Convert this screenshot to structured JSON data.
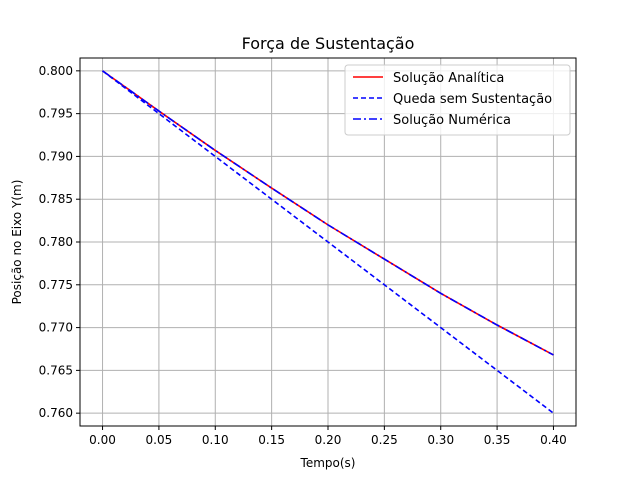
{
  "chart_data": {
    "type": "line",
    "title": "Força de Sustentação",
    "xlabel": "Tempo(s)",
    "ylabel": "Posição no Eixo Y(m)",
    "xlim": [
      -0.02,
      0.42
    ],
    "ylim": [
      0.7585,
      0.8015
    ],
    "xticks": [
      0.0,
      0.05,
      0.1,
      0.15,
      0.2,
      0.25,
      0.3,
      0.35,
      0.4
    ],
    "xtick_labels": [
      "0.00",
      "0.05",
      "0.10",
      "0.15",
      "0.20",
      "0.25",
      "0.30",
      "0.35",
      "0.40"
    ],
    "yticks": [
      0.76,
      0.765,
      0.77,
      0.775,
      0.78,
      0.785,
      0.79,
      0.795,
      0.8
    ],
    "ytick_labels": [
      "0.760",
      "0.765",
      "0.770",
      "0.775",
      "0.780",
      "0.785",
      "0.790",
      "0.795",
      "0.800"
    ],
    "grid": true,
    "legend": "top-right",
    "series": [
      {
        "name": "Solução Analítica",
        "color": "#ff0000",
        "style": "solid",
        "x": [
          0.0,
          0.05,
          0.1,
          0.15,
          0.2,
          0.25,
          0.3,
          0.35,
          0.4
        ],
        "y": [
          0.8,
          0.7953,
          0.7907,
          0.7863,
          0.782,
          0.778,
          0.774,
          0.7703,
          0.7668
        ]
      },
      {
        "name": "Queda sem Sustentação",
        "color": "#0000ff",
        "style": "dashed",
        "x": [
          0.0,
          0.05,
          0.1,
          0.15,
          0.2,
          0.25,
          0.3,
          0.35,
          0.4
        ],
        "y": [
          0.8,
          0.795,
          0.79,
          0.785,
          0.78,
          0.775,
          0.77,
          0.765,
          0.76
        ]
      },
      {
        "name": "Solução Numérica",
        "color": "#0000ff",
        "style": "dashdot",
        "x": [
          0.0,
          0.05,
          0.1,
          0.15,
          0.2,
          0.25,
          0.3,
          0.35,
          0.4
        ],
        "y": [
          0.8,
          0.7953,
          0.7907,
          0.7863,
          0.782,
          0.778,
          0.774,
          0.7703,
          0.7668
        ]
      }
    ]
  }
}
